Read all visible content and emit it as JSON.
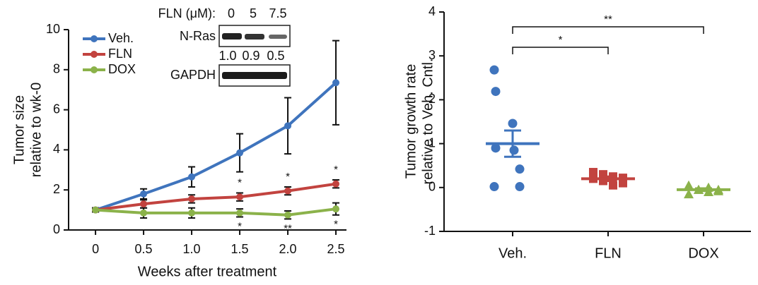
{
  "chart_data": [
    {
      "type": "line",
      "ylabel": [
        "Tumor size",
        "relative to wk-0"
      ],
      "xlabel": "Weeks after treatment",
      "x": [
        0,
        0.5,
        1,
        1.5,
        2,
        2.5
      ],
      "xlim": [
        -0.28,
        2.61
      ],
      "xticks": [
        0,
        0.5,
        {
          "value": 1,
          "label": "1.0"
        },
        1.5,
        {
          "value": 2,
          "label": "2.0"
        },
        2.5
      ],
      "ylim": [
        0,
        10
      ],
      "yticks": [
        0,
        2,
        4,
        6,
        8,
        10
      ],
      "series": [
        {
          "name": "Veh.",
          "color": "#3f74bd",
          "values": [
            1.0,
            1.8,
            2.65,
            3.85,
            5.2,
            7.35
          ],
          "errors": [
            0.1,
            0.25,
            0.5,
            0.95,
            1.4,
            2.1
          ]
        },
        {
          "name": "FLN",
          "color": "#c2433f",
          "values": [
            1.0,
            1.3,
            1.55,
            1.65,
            1.95,
            2.3
          ],
          "errors": [
            0.1,
            0.2,
            0.2,
            0.2,
            0.2,
            0.2
          ],
          "significance": [
            null,
            null,
            null,
            "*",
            "*",
            "*"
          ]
        },
        {
          "name": "DOX",
          "color": "#8bb24a",
          "values": [
            1.0,
            0.85,
            0.85,
            0.85,
            0.75,
            1.05
          ],
          "errors": [
            0.1,
            0.25,
            0.25,
            0.2,
            0.2,
            0.3
          ],
          "significance": [
            null,
            null,
            null,
            "*",
            "**",
            "*"
          ]
        }
      ],
      "inset": {
        "title": "FLN (μM):",
        "doses": [
          "0",
          "5",
          "7.5"
        ],
        "bands": [
          "N-Ras",
          "GAPDH"
        ],
        "values": [
          1.0,
          0.9,
          0.5
        ],
        "value_labels": [
          "1.0",
          "0.9",
          "0.5"
        ]
      }
    },
    {
      "type": "strip",
      "ylabel": [
        "Tumor growth rate",
        "relative to Veh. Cntl."
      ],
      "categories": [
        "Veh.",
        "FLN",
        "DOX"
      ],
      "colors": [
        "#3f74bd",
        "#c2433f",
        "#8bb24a"
      ],
      "markers": [
        "circle",
        "square",
        "triangle"
      ],
      "points": [
        [
          2.68,
          2.19,
          1.46,
          0.9,
          0.85,
          0.42,
          0.02,
          0.02
        ],
        [
          0.35,
          0.3,
          0.25,
          0.22,
          0.2,
          0.15,
          0.05,
          0.1
        ],
        [
          0.05,
          -0.05,
          -0.1,
          -0.05,
          -0.15,
          -0.05,
          0.0,
          -0.08
        ]
      ],
      "means": [
        1.0,
        0.2,
        -0.05
      ],
      "sems": [
        0.3,
        0.05,
        0.03
      ],
      "ylim": [
        -1,
        4
      ],
      "yticks": [
        -1,
        0,
        1,
        2,
        3,
        4
      ],
      "brackets": [
        {
          "from": 0,
          "to": 1,
          "label": "*"
        },
        {
          "from": 0,
          "to": 2,
          "label": "**"
        }
      ]
    }
  ]
}
